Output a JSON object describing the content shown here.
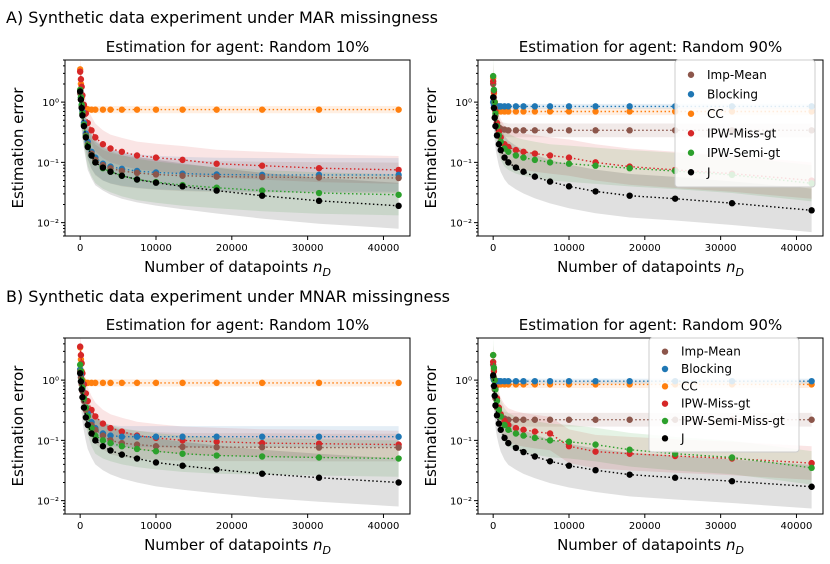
{
  "section_titles": {
    "a": "A) Synthetic data experiment under MAR missingness",
    "b": "B) Synthetic data experiment under MNAR missingness"
  },
  "colors": {
    "Imp-Mean": "#8c564b",
    "Blocking": "#1f77b4",
    "CC": "#ff7f0e",
    "IPW-Miss-gt": "#d62728",
    "IPW-Semi-gt": "#2ca02c",
    "IPW-Semi-Miss-gt": "#2ca02c",
    "J": "#000000"
  },
  "chart_data": [
    {
      "id": "a1",
      "type": "line",
      "yscale": "log",
      "title": "Estimation for agent: Random 10%",
      "xlabel": "Number of datapoints n_D",
      "ylabel": "Estimation error",
      "xlim": [
        -2000,
        43500
      ],
      "ylim": [
        0.006,
        5.0
      ],
      "xticks": [
        0,
        10000,
        20000,
        30000,
        40000
      ],
      "xtick_labels": [
        "0",
        "10000",
        "20000",
        "30000",
        "40000"
      ],
      "yticks": [
        0.01,
        0.1,
        1
      ],
      "ytick_labels": [
        "10⁻²",
        "10⁻¹",
        "10⁰"
      ],
      "legend": null,
      "x": [
        0,
        100,
        200,
        300,
        500,
        750,
        1000,
        1500,
        2000,
        3000,
        4000,
        5500,
        7500,
        10000,
        13500,
        18000,
        24000,
        31500,
        42000
      ],
      "series": [
        {
          "name": "CC",
          "values": [
            3.5,
            2.0,
            1.2,
            0.9,
            0.8,
            0.78,
            0.76,
            0.75,
            0.75,
            0.75,
            0.75,
            0.75,
            0.75,
            0.75,
            0.75,
            0.75,
            0.75,
            0.75,
            0.75
          ],
          "band": 1.15
        },
        {
          "name": "IPW-Miss-gt",
          "values": [
            3.2,
            2.4,
            1.8,
            1.3,
            0.9,
            0.65,
            0.45,
            0.34,
            0.26,
            0.2,
            0.17,
            0.15,
            0.13,
            0.12,
            0.11,
            0.095,
            0.088,
            0.08,
            0.075
          ],
          "band": 1.7
        },
        {
          "name": "Blocking",
          "values": [
            1.5,
            1.2,
            0.9,
            0.7,
            0.45,
            0.3,
            0.22,
            0.15,
            0.12,
            0.095,
            0.085,
            0.078,
            0.072,
            0.068,
            0.065,
            0.063,
            0.062,
            0.062,
            0.062
          ],
          "band": 1.9
        },
        {
          "name": "Imp-Mean",
          "values": [
            1.4,
            1.1,
            0.85,
            0.65,
            0.42,
            0.28,
            0.2,
            0.14,
            0.11,
            0.09,
            0.08,
            0.072,
            0.067,
            0.063,
            0.06,
            0.058,
            0.057,
            0.056,
            0.055
          ],
          "band": 1.8
        },
        {
          "name": "IPW-Semi-gt",
          "values": [
            1.6,
            1.2,
            0.9,
            0.65,
            0.42,
            0.27,
            0.19,
            0.13,
            0.1,
            0.08,
            0.07,
            0.06,
            0.052,
            0.047,
            0.042,
            0.038,
            0.034,
            0.031,
            0.029
          ],
          "band": 2.2
        },
        {
          "name": "J",
          "values": [
            1.5,
            1.1,
            0.8,
            0.6,
            0.4,
            0.26,
            0.18,
            0.13,
            0.1,
            0.082,
            0.07,
            0.06,
            0.052,
            0.046,
            0.04,
            0.034,
            0.028,
            0.023,
            0.019
          ],
          "band": 2.4
        }
      ]
    },
    {
      "id": "a2",
      "type": "line",
      "yscale": "log",
      "title": "Estimation for agent: Random 90%",
      "xlabel": "Number of datapoints n_D",
      "ylabel": "Estimation error",
      "xlim": [
        -2000,
        43500
      ],
      "ylim": [
        0.006,
        5.0
      ],
      "xticks": [
        0,
        10000,
        20000,
        30000,
        40000
      ],
      "xtick_labels": [
        "0",
        "10000",
        "20000",
        "30000",
        "40000"
      ],
      "yticks": [
        0.01,
        0.1,
        1
      ],
      "ytick_labels": [
        "10⁻²",
        "10⁻¹",
        "10⁰"
      ],
      "legend": "top-right",
      "legend_entries": [
        "Imp-Mean",
        "Blocking",
        "CC",
        "IPW-Miss-gt",
        "IPW-Semi-gt",
        "J"
      ],
      "x": [
        0,
        100,
        200,
        300,
        500,
        750,
        1000,
        1500,
        2000,
        3000,
        4000,
        5500,
        7500,
        10000,
        13500,
        18000,
        24000,
        31500,
        42000
      ],
      "series": [
        {
          "name": "CC",
          "values": [
            2.5,
            1.4,
            1.0,
            0.85,
            0.75,
            0.72,
            0.7,
            0.7,
            0.7,
            0.7,
            0.7,
            0.7,
            0.7,
            0.7,
            0.7,
            0.7,
            0.7,
            0.7,
            0.7
          ],
          "band": 1.15
        },
        {
          "name": "Blocking",
          "values": [
            1.0,
            0.9,
            0.88,
            0.86,
            0.85,
            0.85,
            0.85,
            0.85,
            0.85,
            0.85,
            0.85,
            0.85,
            0.85,
            0.85,
            0.85,
            0.85,
            0.85,
            0.85,
            0.85
          ],
          "band": 1.1
        },
        {
          "name": "Imp-Mean",
          "values": [
            2.0,
            1.2,
            0.8,
            0.6,
            0.45,
            0.38,
            0.36,
            0.35,
            0.34,
            0.34,
            0.34,
            0.34,
            0.34,
            0.34,
            0.34,
            0.34,
            0.34,
            0.34,
            0.34
          ],
          "band": 1.3
        },
        {
          "name": "IPW-Miss-gt",
          "values": [
            2.2,
            1.5,
            1.0,
            0.7,
            0.45,
            0.32,
            0.26,
            0.2,
            0.18,
            0.16,
            0.15,
            0.14,
            0.13,
            0.12,
            0.1,
            0.085,
            0.075,
            0.065,
            0.05
          ],
          "band": 2.0
        },
        {
          "name": "IPW-Semi-gt",
          "values": [
            2.7,
            1.6,
            1.0,
            0.65,
            0.4,
            0.28,
            0.22,
            0.17,
            0.15,
            0.13,
            0.12,
            0.11,
            0.1,
            0.095,
            0.088,
            0.08,
            0.072,
            0.062,
            0.045
          ],
          "band": 2.0
        },
        {
          "name": "J",
          "values": [
            1.2,
            0.8,
            0.55,
            0.4,
            0.28,
            0.2,
            0.16,
            0.12,
            0.1,
            0.082,
            0.07,
            0.058,
            0.048,
            0.04,
            0.033,
            0.028,
            0.025,
            0.021,
            0.016
          ],
          "band": 2.3
        }
      ]
    },
    {
      "id": "b1",
      "type": "line",
      "yscale": "log",
      "title": "Estimation for agent: Random 10%",
      "xlabel": "Number of datapoints n_D",
      "ylabel": "Estimation error",
      "xlim": [
        -2000,
        43500
      ],
      "ylim": [
        0.006,
        5.0
      ],
      "xticks": [
        0,
        10000,
        20000,
        30000,
        40000
      ],
      "xtick_labels": [
        "0",
        "10000",
        "20000",
        "30000",
        "40000"
      ],
      "yticks": [
        0.01,
        0.1,
        1
      ],
      "ytick_labels": [
        "10⁻²",
        "10⁻¹",
        "10⁰"
      ],
      "legend": null,
      "x": [
        0,
        100,
        200,
        300,
        500,
        750,
        1000,
        1500,
        2000,
        3000,
        4000,
        5500,
        7500,
        10000,
        13500,
        18000,
        24000,
        31500,
        42000
      ],
      "series": [
        {
          "name": "CC",
          "values": [
            3.5,
            2.2,
            1.4,
            1.0,
            0.92,
            0.9,
            0.9,
            0.9,
            0.9,
            0.9,
            0.9,
            0.9,
            0.9,
            0.9,
            0.9,
            0.9,
            0.9,
            0.9,
            0.9
          ],
          "band": 1.15
        },
        {
          "name": "IPW-Miss-gt",
          "values": [
            3.6,
            2.6,
            1.9,
            1.3,
            0.85,
            0.6,
            0.45,
            0.32,
            0.25,
            0.19,
            0.16,
            0.14,
            0.12,
            0.11,
            0.1,
            0.095,
            0.09,
            0.088,
            0.085
          ],
          "band": 1.7
        },
        {
          "name": "Blocking",
          "values": [
            1.5,
            1.2,
            0.9,
            0.7,
            0.5,
            0.35,
            0.28,
            0.2,
            0.16,
            0.13,
            0.12,
            0.115,
            0.115,
            0.115,
            0.115,
            0.115,
            0.115,
            0.115,
            0.115
          ],
          "band": 1.5
        },
        {
          "name": "Imp-Mean",
          "values": [
            1.4,
            1.1,
            0.85,
            0.65,
            0.45,
            0.32,
            0.25,
            0.18,
            0.15,
            0.12,
            0.1,
            0.09,
            0.085,
            0.08,
            0.078,
            0.077,
            0.077,
            0.076,
            0.076
          ],
          "band": 1.7
        },
        {
          "name": "IPW-Semi-Miss-gt",
          "values": [
            1.8,
            1.4,
            1.0,
            0.75,
            0.5,
            0.35,
            0.25,
            0.16,
            0.12,
            0.1,
            0.09,
            0.08,
            0.072,
            0.066,
            0.06,
            0.056,
            0.054,
            0.052,
            0.05
          ],
          "band": 2.0
        },
        {
          "name": "J",
          "values": [
            1.3,
            0.95,
            0.7,
            0.52,
            0.35,
            0.24,
            0.18,
            0.13,
            0.1,
            0.08,
            0.068,
            0.058,
            0.05,
            0.043,
            0.038,
            0.033,
            0.028,
            0.024,
            0.02
          ],
          "band": 2.5
        }
      ]
    },
    {
      "id": "b2",
      "type": "line",
      "yscale": "log",
      "title": "Estimation for agent: Random 90%",
      "xlabel": "Number of datapoints n_D",
      "ylabel": "Estimation error",
      "xlim": [
        -2000,
        43500
      ],
      "ylim": [
        0.006,
        5.0
      ],
      "xticks": [
        0,
        10000,
        20000,
        30000,
        40000
      ],
      "xtick_labels": [
        "0",
        "10000",
        "20000",
        "30000",
        "40000"
      ],
      "yticks": [
        0.01,
        0.1,
        1
      ],
      "ytick_labels": [
        "10⁻²",
        "10⁻¹",
        "10⁰"
      ],
      "legend": "top-right",
      "legend_entries": [
        "Imp-Mean",
        "Blocking",
        "CC",
        "IPW-Miss-gt",
        "IPW-Semi-Miss-gt",
        "J"
      ],
      "x": [
        0,
        100,
        200,
        300,
        500,
        750,
        1000,
        1500,
        2000,
        3000,
        4000,
        5500,
        7500,
        10000,
        13500,
        18000,
        24000,
        31500,
        42000
      ],
      "series": [
        {
          "name": "CC",
          "values": [
            2.6,
            1.5,
            1.0,
            0.9,
            0.85,
            0.85,
            0.85,
            0.85,
            0.85,
            0.85,
            0.85,
            0.85,
            0.85,
            0.85,
            0.85,
            0.85,
            0.85,
            0.85,
            0.85
          ],
          "band": 1.15
        },
        {
          "name": "Blocking",
          "values": [
            1.1,
            1.0,
            0.98,
            0.97,
            0.96,
            0.96,
            0.96,
            0.96,
            0.96,
            0.96,
            0.96,
            0.96,
            0.96,
            0.96,
            0.96,
            0.96,
            0.96,
            0.96,
            0.96
          ],
          "band": 1.1
        },
        {
          "name": "Imp-Mean",
          "values": [
            1.8,
            1.1,
            0.7,
            0.5,
            0.35,
            0.28,
            0.25,
            0.23,
            0.22,
            0.22,
            0.22,
            0.22,
            0.22,
            0.22,
            0.22,
            0.22,
            0.22,
            0.22,
            0.22
          ],
          "band": 1.3
        },
        {
          "name": "IPW-Miss-gt",
          "values": [
            2.0,
            1.4,
            1.0,
            0.75,
            0.5,
            0.35,
            0.27,
            0.21,
            0.18,
            0.16,
            0.15,
            0.14,
            0.13,
            0.08,
            0.065,
            0.06,
            0.055,
            0.05,
            0.042
          ],
          "band": 1.9
        },
        {
          "name": "IPW-Semi-Miss-gt",
          "values": [
            2.6,
            1.6,
            1.0,
            0.7,
            0.45,
            0.32,
            0.25,
            0.18,
            0.15,
            0.13,
            0.12,
            0.11,
            0.1,
            0.095,
            0.085,
            0.07,
            0.06,
            0.052,
            0.035
          ],
          "band": 1.9
        },
        {
          "name": "J",
          "values": [
            1.2,
            0.8,
            0.55,
            0.38,
            0.26,
            0.19,
            0.15,
            0.11,
            0.09,
            0.075,
            0.064,
            0.054,
            0.045,
            0.038,
            0.032,
            0.027,
            0.024,
            0.021,
            0.017
          ],
          "band": 2.3
        }
      ]
    }
  ]
}
